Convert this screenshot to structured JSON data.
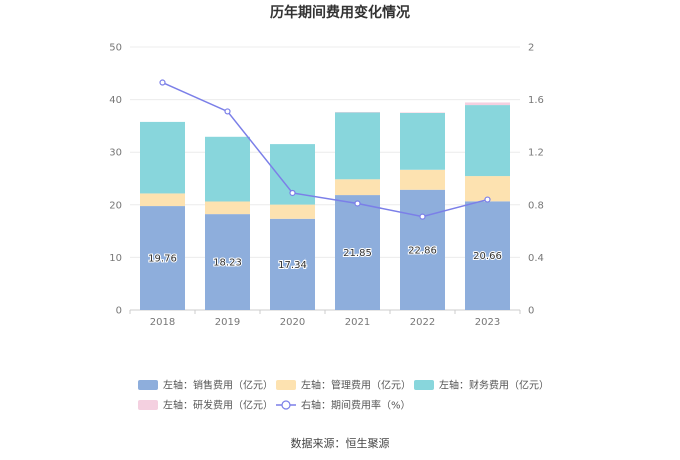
{
  "chart_data": {
    "type": "bar",
    "title": "历年期间费用变化情况",
    "categories": [
      "2018",
      "2019",
      "2020",
      "2021",
      "2022",
      "2023"
    ],
    "series": [
      {
        "name": "左轴：销售费用（亿元）",
        "axis": "left",
        "kind": "bar",
        "color": "#8eaedc",
        "values": [
          19.76,
          18.23,
          17.34,
          21.85,
          22.86,
          20.66
        ]
      },
      {
        "name": "左轴：管理费用（亿元）",
        "axis": "left",
        "kind": "bar",
        "color": "#fde2b0",
        "values": [
          2.4,
          2.4,
          2.7,
          3.0,
          3.8,
          4.8
        ]
      },
      {
        "name": "左轴：财务费用（亿元）",
        "axis": "left",
        "kind": "bar",
        "color": "#88d6dc",
        "values": [
          13.6,
          12.3,
          11.5,
          12.7,
          10.8,
          13.5
        ]
      },
      {
        "name": "左轴：研发费用（亿元）",
        "axis": "left",
        "kind": "bar",
        "color": "#f4d0e0",
        "values": [
          0,
          0,
          0,
          0.1,
          0.1,
          0.5
        ]
      },
      {
        "name": "右轴：期间费用率（%）",
        "axis": "right",
        "kind": "line",
        "color": "#7b7fe8",
        "values": [
          1.73,
          1.51,
          0.89,
          0.81,
          0.71,
          0.84
        ]
      }
    ],
    "bar_labels": [
      "19.76",
      "18.23",
      "17.34",
      "21.85",
      "22.86",
      "20.66"
    ],
    "left_axis": {
      "ylim": [
        0,
        50
      ],
      "ticks": [
        "0",
        "10",
        "20",
        "30",
        "40",
        "50"
      ]
    },
    "right_axis": {
      "ylim": [
        0,
        2
      ],
      "ticks": [
        "0",
        "0.4",
        "0.8",
        "1.2",
        "1.6",
        "2"
      ]
    },
    "grid": true,
    "legend_position": "bottom",
    "source": "数据来源：恒生聚源"
  }
}
